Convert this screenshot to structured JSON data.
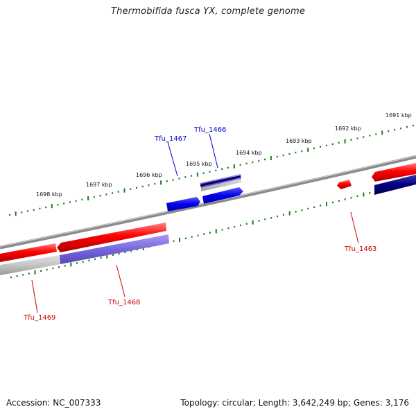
{
  "title": "Thermobifida fusca YX, complete genome",
  "footer": {
    "accession": "Accession: NC_007333",
    "summary": "Topology: circular; Length: 3,642,249 bp; Genes: 3,176"
  },
  "ruler_labels": [
    "1691 kbp",
    "1692 kbp",
    "1693 kbp",
    "1694 kbp",
    "1695 kbp",
    "1696 kbp",
    "1697 kbp",
    "1698 kbp"
  ],
  "genes": {
    "tfu_1463": "Tfu_1463",
    "tfu_1466": "Tfu_1466",
    "tfu_1467": "Tfu_1467",
    "tfu_1468": "Tfu_1468",
    "tfu_1469": "Tfu_1469"
  },
  "colors": {
    "forward_gene": "#ff0000",
    "reverse_gene": "#0000ee",
    "forward_cds": "#7766dd",
    "reverse_cds": "#000080",
    "backbone": "#8a8a8a",
    "ticks": "#1a7a1a",
    "forward_label": "#cc0000",
    "reverse_label": "#0000cc"
  }
}
